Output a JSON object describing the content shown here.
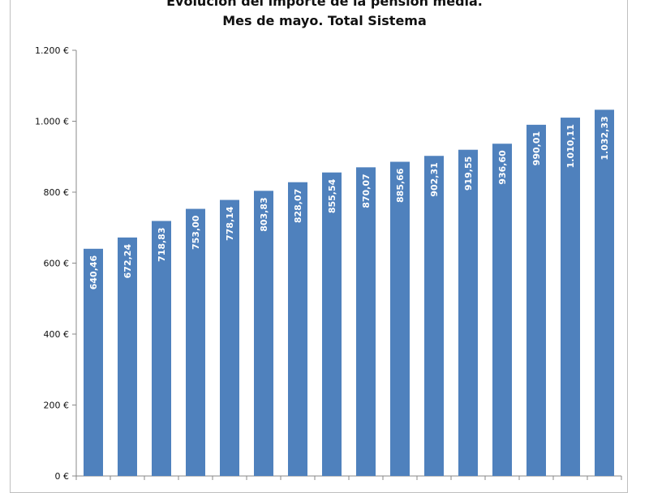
{
  "chart_data": {
    "type": "bar",
    "title": "Evolución del importe de la pensión media.",
    "subtitle": "Mes de mayo. Total Sistema",
    "xlabel": "",
    "ylabel": "",
    "ylim": [
      0,
      1200
    ],
    "yticks": [
      0,
      200,
      400,
      600,
      800,
      1000,
      1200
    ],
    "ytick_labels": [
      "0 €",
      "200 €",
      "400 €",
      "600 €",
      "800 €",
      "1.000 €",
      "1.200 €"
    ],
    "values": [
      640.46,
      672.24,
      718.83,
      753.0,
      778.14,
      803.83,
      828.07,
      855.54,
      870.07,
      885.66,
      902.31,
      919.55,
      936.6,
      990.01,
      1010.11,
      1032.33
    ],
    "data_labels": [
      "640,46",
      "672,24",
      "718,83",
      "753,00",
      "778,14",
      "803,83",
      "828,07",
      "855,54",
      "870,07",
      "885,66",
      "902,31",
      "919,55",
      "936,60",
      "990,01",
      "1.010,11",
      "1.032,33"
    ],
    "bar_color": "#4f81bd",
    "grid": false,
    "legend": "none"
  }
}
